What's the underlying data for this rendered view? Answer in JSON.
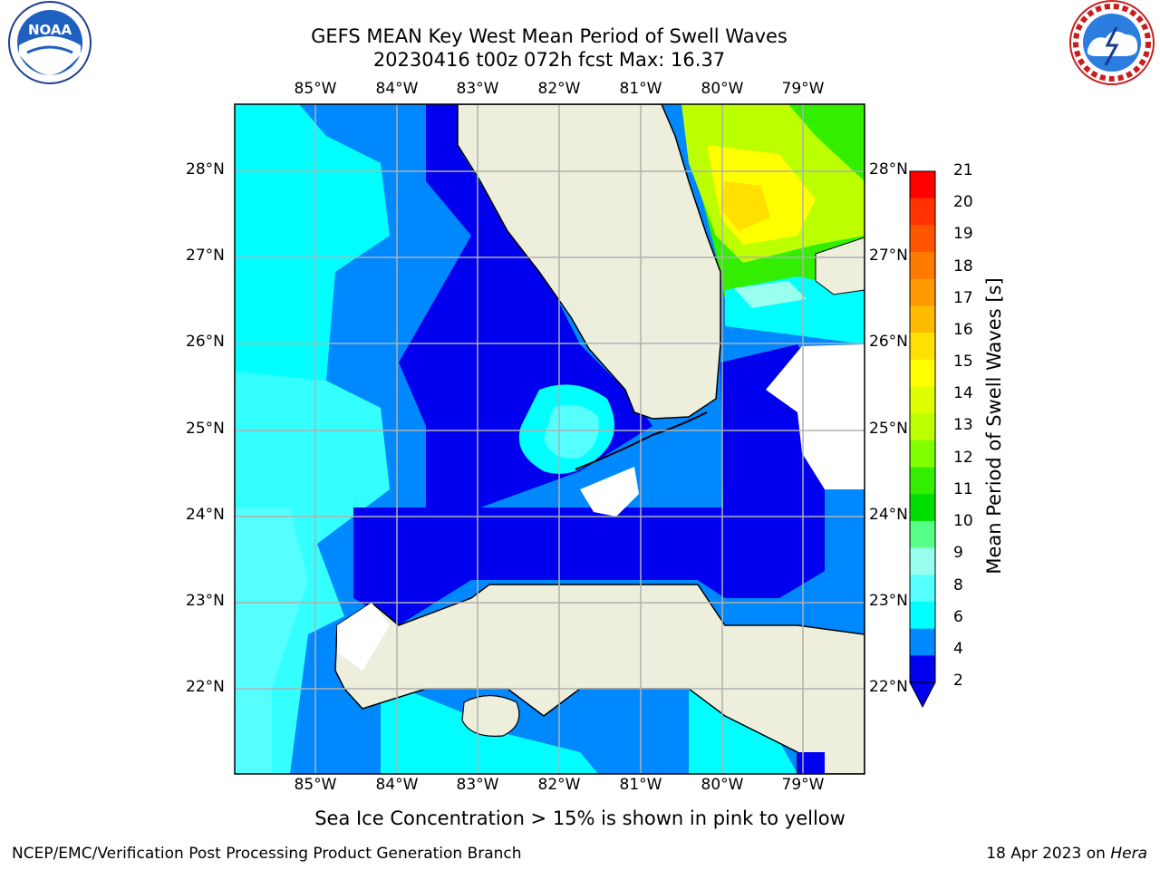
{
  "title": {
    "line1": "GEFS MEAN Key West Mean Period of Swell Waves",
    "line2": "20230416 t00z 072h fcst   Max: 16.37"
  },
  "map": {
    "lon_labels": [
      "85°W",
      "84°W",
      "83°W",
      "82°W",
      "81°W",
      "80°W",
      "79°W"
    ],
    "lat_labels": [
      "28°N",
      "27°N",
      "26°N",
      "25°N",
      "24°N",
      "23°N",
      "22°N"
    ],
    "land_color": "#eeeedd",
    "grid_color": "#b0b0b0",
    "regions": [
      "Gulf of Mexico",
      "Florida Peninsula",
      "Florida Keys",
      "Florida Straits",
      "Cuba",
      "Isla de la Juventud",
      "Bahamas"
    ]
  },
  "colorbar": {
    "label": "Mean Period of Swell Waves [s]",
    "ticks": [
      21,
      20,
      19,
      18,
      17,
      16,
      15,
      14,
      13,
      12,
      11,
      10,
      9,
      8,
      6,
      4,
      2
    ],
    "colors": [
      "#ff0000",
      "#ff3300",
      "#ff5500",
      "#ff7a00",
      "#ff9900",
      "#ffbb00",
      "#ffe000",
      "#ffff00",
      "#ddff00",
      "#bbff00",
      "#7fff00",
      "#33ee00",
      "#00dd00",
      "#55ff88",
      "#99ffee",
      "#55ffff",
      "#00ffff",
      "#0088ff",
      "#0000ee"
    ]
  },
  "logos": {
    "left": {
      "name": "NOAA",
      "text": "NOAA"
    },
    "right": {
      "name": "National Weather Service"
    }
  },
  "note": "Sea Ice Concentration > 15% is shown in pink to yellow",
  "footer": {
    "left": "NCEP/EMC/Verification Post Processing Product Generation Branch",
    "right_prefix": "18 Apr 2023 on ",
    "right_host": "Hera"
  }
}
